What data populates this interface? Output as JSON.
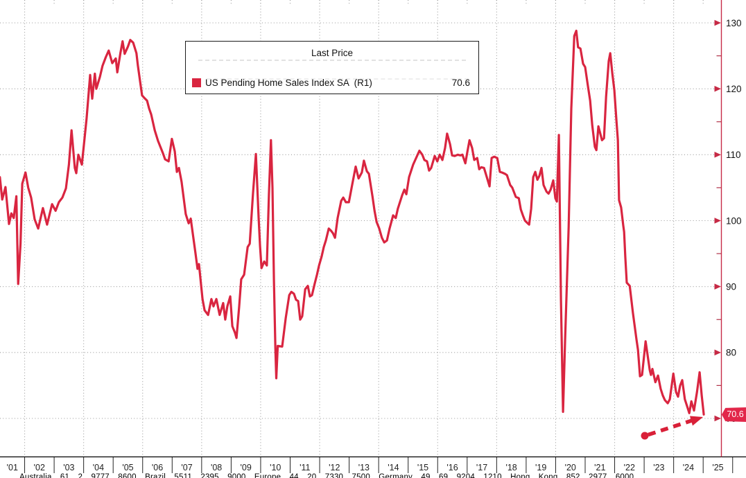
{
  "page": {
    "background": "#ffffff"
  },
  "legend": {
    "title": "Last Price",
    "series": [
      {
        "label": "US Pending Home Sales Index SA  (R1)",
        "value": "70.6",
        "swatch_color": "#d92540"
      }
    ]
  },
  "y_axis": {
    "side": "right",
    "major_ticks": [
      130,
      120,
      110,
      100,
      90,
      80,
      70
    ],
    "minor_ticks": [
      125,
      115,
      105,
      95,
      85,
      75
    ],
    "axis_color": "#c62a45",
    "label_color": "#111111"
  },
  "x_axis": {
    "labels": [
      "'01",
      "'02",
      "'03",
      "'04",
      "'05",
      "'06",
      "'07",
      "'08",
      "'09",
      "'10",
      "'11",
      "'12",
      "'13",
      "'14",
      "'15",
      "'16",
      "'17",
      "'18",
      "'19",
      "'20",
      "'21",
      "'22",
      "'23",
      "'24",
      "'25"
    ]
  },
  "last_price_badge": {
    "text": "70.6",
    "bg_color": "#e2274a",
    "text_color": "#ffffff"
  },
  "annotation_arrow": {
    "style": "dashed",
    "color": "#d92038",
    "direction": "up-right"
  },
  "footer": {
    "text": "Australia 61 2 9777 8600 Brazil 5511 2395 9000 Europe 44 20 7330 7500 Germany 49 69 9204 1210 Hong Kong 852 2977 6000"
  },
  "chart_data": {
    "type": "line",
    "title": "Last Price",
    "xlabel": "",
    "ylabel": "",
    "xlim": [
      2001.0,
      2025.6
    ],
    "ylim": [
      64,
      133.5
    ],
    "grid": {
      "h_values": [
        70,
        80,
        90,
        100,
        110,
        120,
        130
      ],
      "v_years": [
        2002,
        2004,
        2006,
        2008,
        2010,
        2012,
        2014,
        2016,
        2018,
        2020,
        2022,
        2024
      ]
    },
    "legend_position": "top-center",
    "series": [
      {
        "name": "US Pending Home Sales Index SA",
        "axis": "R1",
        "last_value": 70.6,
        "color": "#d92540",
        "points": [
          [
            2001.16,
            106.6
          ],
          [
            2001.24,
            103.2
          ],
          [
            2001.35,
            105.1
          ],
          [
            2001.47,
            99.5
          ],
          [
            2001.55,
            101.1
          ],
          [
            2001.63,
            100.4
          ],
          [
            2001.72,
            103.7
          ],
          [
            2001.78,
            90.4
          ],
          [
            2001.86,
            96.5
          ],
          [
            2001.92,
            105.6
          ],
          [
            2002.03,
            107.3
          ],
          [
            2002.12,
            105.0
          ],
          [
            2002.22,
            103.5
          ],
          [
            2002.34,
            100.2
          ],
          [
            2002.46,
            98.8
          ],
          [
            2002.62,
            101.9
          ],
          [
            2002.76,
            99.4
          ],
          [
            2002.93,
            102.5
          ],
          [
            2003.05,
            101.5
          ],
          [
            2003.16,
            102.8
          ],
          [
            2003.28,
            103.5
          ],
          [
            2003.4,
            104.9
          ],
          [
            2003.5,
            108.5
          ],
          [
            2003.59,
            113.7
          ],
          [
            2003.7,
            108.0
          ],
          [
            2003.75,
            107.2
          ],
          [
            2003.82,
            110.0
          ],
          [
            2003.94,
            108.5
          ],
          [
            2004.1,
            115.5
          ],
          [
            2004.22,
            122.1
          ],
          [
            2004.29,
            118.5
          ],
          [
            2004.38,
            122.3
          ],
          [
            2004.43,
            120.0
          ],
          [
            2004.55,
            121.8
          ],
          [
            2004.64,
            123.5
          ],
          [
            2004.75,
            124.8
          ],
          [
            2004.85,
            125.8
          ],
          [
            2004.97,
            123.9
          ],
          [
            2005.09,
            124.6
          ],
          [
            2005.14,
            122.5
          ],
          [
            2005.25,
            125.5
          ],
          [
            2005.32,
            127.2
          ],
          [
            2005.39,
            125.3
          ],
          [
            2005.5,
            126.4
          ],
          [
            2005.58,
            127.4
          ],
          [
            2005.68,
            127.0
          ],
          [
            2005.79,
            125.4
          ],
          [
            2005.84,
            123.5
          ],
          [
            2005.98,
            119.0
          ],
          [
            2006.08,
            118.5
          ],
          [
            2006.15,
            118.2
          ],
          [
            2006.22,
            117.0
          ],
          [
            2006.29,
            116.1
          ],
          [
            2006.41,
            113.7
          ],
          [
            2006.52,
            112.1
          ],
          [
            2006.69,
            110.2
          ],
          [
            2006.76,
            109.3
          ],
          [
            2006.88,
            109.0
          ],
          [
            2006.99,
            112.4
          ],
          [
            2007.09,
            110.5
          ],
          [
            2007.16,
            107.4
          ],
          [
            2007.23,
            108.0
          ],
          [
            2007.32,
            105.9
          ],
          [
            2007.46,
            101.0
          ],
          [
            2007.56,
            99.6
          ],
          [
            2007.63,
            100.3
          ],
          [
            2007.79,
            95.1
          ],
          [
            2007.86,
            92.7
          ],
          [
            2007.91,
            93.4
          ],
          [
            2008.03,
            88.1
          ],
          [
            2008.1,
            86.4
          ],
          [
            2008.22,
            85.7
          ],
          [
            2008.33,
            88.1
          ],
          [
            2008.4,
            87.0
          ],
          [
            2008.5,
            88.1
          ],
          [
            2008.61,
            85.7
          ],
          [
            2008.73,
            87.5
          ],
          [
            2008.8,
            85.0
          ],
          [
            2008.87,
            87.0
          ],
          [
            2008.97,
            88.5
          ],
          [
            2009.04,
            84.0
          ],
          [
            2009.13,
            83.0
          ],
          [
            2009.18,
            82.2
          ],
          [
            2009.27,
            86.9
          ],
          [
            2009.34,
            91.1
          ],
          [
            2009.44,
            91.8
          ],
          [
            2009.56,
            96.0
          ],
          [
            2009.63,
            96.5
          ],
          [
            2009.74,
            104.1
          ],
          [
            2009.84,
            110.1
          ],
          [
            2009.93,
            100.5
          ],
          [
            2009.98,
            96.1
          ],
          [
            2010.03,
            92.8
          ],
          [
            2010.12,
            93.8
          ],
          [
            2010.21,
            93.2
          ],
          [
            2010.28,
            104.0
          ],
          [
            2010.35,
            112.2
          ],
          [
            2010.4,
            105.0
          ],
          [
            2010.45,
            91.0
          ],
          [
            2010.5,
            80.6
          ],
          [
            2010.53,
            76.1
          ],
          [
            2010.58,
            81.0
          ],
          [
            2010.73,
            80.9
          ],
          [
            2010.85,
            85.2
          ],
          [
            2010.97,
            88.7
          ],
          [
            2011.04,
            89.2
          ],
          [
            2011.13,
            88.9
          ],
          [
            2011.2,
            88.0
          ],
          [
            2011.27,
            87.8
          ],
          [
            2011.34,
            85.0
          ],
          [
            2011.41,
            85.5
          ],
          [
            2011.51,
            89.6
          ],
          [
            2011.6,
            90.1
          ],
          [
            2011.67,
            88.5
          ],
          [
            2011.74,
            88.7
          ],
          [
            2011.83,
            90.4
          ],
          [
            2011.91,
            91.8
          ],
          [
            2011.98,
            93.2
          ],
          [
            2012.07,
            94.6
          ],
          [
            2012.14,
            96.0
          ],
          [
            2012.21,
            97.0
          ],
          [
            2012.31,
            98.8
          ],
          [
            2012.38,
            98.5
          ],
          [
            2012.45,
            98.1
          ],
          [
            2012.52,
            97.4
          ],
          [
            2012.61,
            100.4
          ],
          [
            2012.73,
            103.0
          ],
          [
            2012.8,
            103.5
          ],
          [
            2012.89,
            102.8
          ],
          [
            2012.99,
            102.8
          ],
          [
            2013.1,
            105.4
          ],
          [
            2013.22,
            108.2
          ],
          [
            2013.32,
            106.4
          ],
          [
            2013.43,
            107.3
          ],
          [
            2013.5,
            109.1
          ],
          [
            2013.6,
            107.5
          ],
          [
            2013.67,
            107.1
          ],
          [
            2013.79,
            103.7
          ],
          [
            2013.86,
            101.5
          ],
          [
            2013.93,
            99.8
          ],
          [
            2014.02,
            98.8
          ],
          [
            2014.11,
            97.4
          ],
          [
            2014.19,
            96.7
          ],
          [
            2014.28,
            97.0
          ],
          [
            2014.37,
            98.8
          ],
          [
            2014.49,
            100.8
          ],
          [
            2014.58,
            100.4
          ],
          [
            2014.65,
            101.8
          ],
          [
            2014.8,
            103.9
          ],
          [
            2014.87,
            104.7
          ],
          [
            2014.94,
            104.0
          ],
          [
            2015.03,
            106.6
          ],
          [
            2015.17,
            108.5
          ],
          [
            2015.38,
            110.6
          ],
          [
            2015.48,
            110.0
          ],
          [
            2015.55,
            109.2
          ],
          [
            2015.64,
            109.0
          ],
          [
            2015.71,
            107.6
          ],
          [
            2015.78,
            108.0
          ],
          [
            2015.9,
            109.8
          ],
          [
            2015.99,
            109.0
          ],
          [
            2016.07,
            110.0
          ],
          [
            2016.16,
            109.2
          ],
          [
            2016.25,
            111.0
          ],
          [
            2016.32,
            113.2
          ],
          [
            2016.42,
            111.6
          ],
          [
            2016.49,
            109.9
          ],
          [
            2016.58,
            109.8
          ],
          [
            2016.68,
            110.0
          ],
          [
            2016.77,
            109.9
          ],
          [
            2016.84,
            110.0
          ],
          [
            2016.94,
            108.7
          ],
          [
            2017.01,
            110.5
          ],
          [
            2017.08,
            112.2
          ],
          [
            2017.17,
            111.0
          ],
          [
            2017.24,
            109.2
          ],
          [
            2017.34,
            109.5
          ],
          [
            2017.41,
            107.8
          ],
          [
            2017.48,
            108.1
          ],
          [
            2017.57,
            108.0
          ],
          [
            2017.64,
            107.0
          ],
          [
            2017.76,
            105.2
          ],
          [
            2017.83,
            109.5
          ],
          [
            2017.92,
            109.7
          ],
          [
            2018.02,
            109.5
          ],
          [
            2018.11,
            107.4
          ],
          [
            2018.18,
            107.3
          ],
          [
            2018.28,
            107.1
          ],
          [
            2018.35,
            106.9
          ],
          [
            2018.46,
            105.4
          ],
          [
            2018.53,
            105.0
          ],
          [
            2018.65,
            103.6
          ],
          [
            2018.75,
            103.4
          ],
          [
            2018.82,
            101.7
          ],
          [
            2018.89,
            100.8
          ],
          [
            2018.96,
            100.0
          ],
          [
            2019.05,
            99.6
          ],
          [
            2019.1,
            99.4
          ],
          [
            2019.17,
            101.8
          ],
          [
            2019.24,
            106.6
          ],
          [
            2019.31,
            107.4
          ],
          [
            2019.38,
            106.2
          ],
          [
            2019.45,
            106.8
          ],
          [
            2019.52,
            108.0
          ],
          [
            2019.59,
            105.4
          ],
          [
            2019.69,
            104.4
          ],
          [
            2019.76,
            104.1
          ],
          [
            2019.83,
            104.7
          ],
          [
            2019.92,
            106.1
          ],
          [
            2019.99,
            103.4
          ],
          [
            2020.04,
            102.9
          ],
          [
            2020.11,
            113.0
          ],
          [
            2020.18,
            88.0
          ],
          [
            2020.25,
            71.0
          ],
          [
            2020.32,
            82.0
          ],
          [
            2020.44,
            99.0
          ],
          [
            2020.53,
            117.0
          ],
          [
            2020.63,
            128.0
          ],
          [
            2020.7,
            128.8
          ],
          [
            2020.76,
            126.3
          ],
          [
            2020.84,
            126.1
          ],
          [
            2020.93,
            123.8
          ],
          [
            2021.0,
            123.3
          ],
          [
            2021.1,
            120.2
          ],
          [
            2021.17,
            118.2
          ],
          [
            2021.24,
            114.5
          ],
          [
            2021.33,
            111.2
          ],
          [
            2021.38,
            110.7
          ],
          [
            2021.45,
            114.3
          ],
          [
            2021.57,
            112.2
          ],
          [
            2021.64,
            112.5
          ],
          [
            2021.71,
            118.8
          ],
          [
            2021.8,
            124.2
          ],
          [
            2021.85,
            125.4
          ],
          [
            2021.92,
            122.4
          ],
          [
            2021.99,
            119.8
          ],
          [
            2022.06,
            115.2
          ],
          [
            2022.11,
            112.2
          ],
          [
            2022.15,
            103.1
          ],
          [
            2022.22,
            102.0
          ],
          [
            2022.29,
            99.3
          ],
          [
            2022.32,
            98.3
          ],
          [
            2022.36,
            94.5
          ],
          [
            2022.41,
            90.6
          ],
          [
            2022.51,
            90.1
          ],
          [
            2022.62,
            86.0
          ],
          [
            2022.74,
            82.0
          ],
          [
            2022.79,
            80.4
          ],
          [
            2022.86,
            76.4
          ],
          [
            2022.93,
            76.6
          ],
          [
            2023.05,
            81.7
          ],
          [
            2023.12,
            79.5
          ],
          [
            2023.19,
            77.3
          ],
          [
            2023.23,
            76.6
          ],
          [
            2023.28,
            77.5
          ],
          [
            2023.38,
            75.5
          ],
          [
            2023.47,
            76.5
          ],
          [
            2023.56,
            74.5
          ],
          [
            2023.63,
            73.5
          ],
          [
            2023.7,
            72.8
          ],
          [
            2023.8,
            72.3
          ],
          [
            2023.87,
            72.9
          ],
          [
            2023.99,
            76.8
          ],
          [
            2024.08,
            74.0
          ],
          [
            2024.15,
            73.3
          ],
          [
            2024.22,
            75.0
          ],
          [
            2024.29,
            75.8
          ],
          [
            2024.38,
            72.9
          ],
          [
            2024.46,
            71.8
          ],
          [
            2024.53,
            70.8
          ],
          [
            2024.6,
            72.6
          ],
          [
            2024.69,
            71.2
          ],
          [
            2024.79,
            74.0
          ],
          [
            2024.88,
            77.0
          ],
          [
            2024.95,
            73.5
          ],
          [
            2025.02,
            70.6
          ]
        ]
      }
    ]
  }
}
